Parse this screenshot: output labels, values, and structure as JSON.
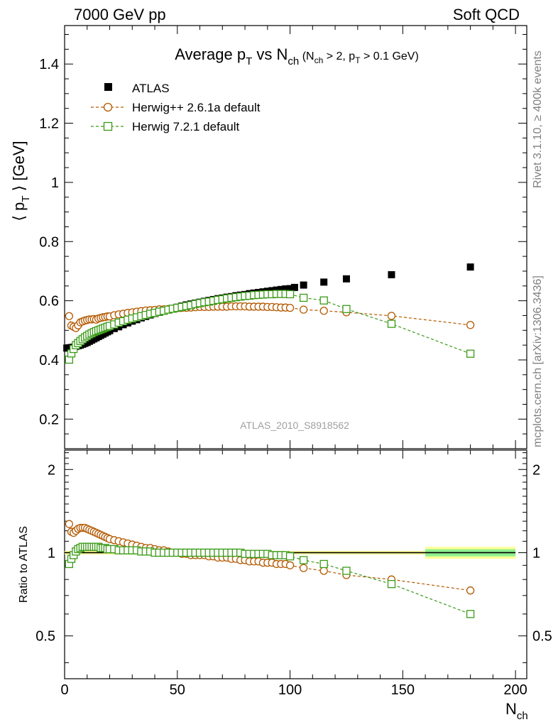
{
  "header": {
    "left": "7000 GeV pp",
    "right": "Soft QCD"
  },
  "side_labels": {
    "top": "Rivet 3.1.10, ≥ 400k events",
    "bottom": "mcplots.cern.ch [arXiv:1306.3436]"
  },
  "watermark": "ATLAS_2010_S8918562",
  "title": {
    "main_a": "Average p",
    "main_sub_a": "T",
    "main_b": " vs N",
    "main_sub_b": "ch",
    "cut_a": " (N",
    "cut_sub_a": "ch",
    "cut_b": " > 2, p",
    "cut_sub_b": "T",
    "cut_c": " > 0.1 GeV)"
  },
  "ylabel": {
    "open": "⟨ p",
    "sub": "T",
    "close": " ⟩  [GeV]"
  },
  "ratio_ylabel": "Ratio to ATLAS",
  "xlabel": {
    "main": "N",
    "sub": "ch"
  },
  "legend": [
    {
      "name": "ATLAS",
      "color": "#000000",
      "marker": "filled-square"
    },
    {
      "name": "Herwig++ 2.6.1a default",
      "color": "#b35900",
      "marker": "open-circle"
    },
    {
      "name": "Herwig 7.2.1 default",
      "color": "#3a9a17",
      "marker": "open-square"
    }
  ],
  "chart_data": {
    "type": "scatter",
    "xlim": [
      0,
      205
    ],
    "ylim": [
      0.1,
      1.53
    ],
    "ratio_ylim": [
      0.35,
      2.35
    ],
    "x_ticks": [
      "0",
      "50",
      "100",
      "150",
      "200"
    ],
    "y_ticks": [
      "0.2",
      "0.4",
      "0.6",
      "0.8",
      "1",
      "1.2",
      "1.4"
    ],
    "ratio_ticks": [
      "0.5",
      "1",
      "2"
    ],
    "series": [
      {
        "name": "ATLAS",
        "x": [
          1,
          2,
          3,
          4,
          5,
          6,
          7,
          8,
          9,
          10,
          11,
          12,
          13,
          14,
          15,
          16,
          17,
          18,
          19,
          20,
          22,
          24,
          26,
          28,
          30,
          32,
          34,
          36,
          38,
          40,
          42,
          44,
          46,
          48,
          50,
          52,
          54,
          56,
          58,
          60,
          62,
          64,
          66,
          68,
          70,
          72,
          74,
          76,
          78,
          80,
          82,
          84,
          86,
          88,
          90,
          92,
          94,
          96,
          98,
          100,
          102,
          106,
          115,
          125,
          145,
          180
        ],
        "y": [
          0.44,
          0.441,
          0.442,
          0.443,
          0.446,
          0.448,
          0.45,
          0.453,
          0.456,
          0.459,
          0.463,
          0.467,
          0.471,
          0.475,
          0.479,
          0.483,
          0.487,
          0.491,
          0.495,
          0.499,
          0.506,
          0.512,
          0.519,
          0.525,
          0.531,
          0.536,
          0.542,
          0.547,
          0.552,
          0.557,
          0.561,
          0.566,
          0.57,
          0.574,
          0.578,
          0.582,
          0.586,
          0.589,
          0.592,
          0.595,
          0.598,
          0.601,
          0.604,
          0.607,
          0.609,
          0.612,
          0.614,
          0.617,
          0.619,
          0.621,
          0.624,
          0.626,
          0.628,
          0.63,
          0.632,
          0.634,
          0.636,
          0.638,
          0.64,
          0.641,
          0.645,
          0.653,
          0.663,
          0.674,
          0.688,
          0.714
        ]
      },
      {
        "name": "Herwig++ 2.6.1a default",
        "x": [
          2,
          3,
          4,
          5,
          6,
          7,
          8,
          9,
          10,
          11,
          12,
          13,
          14,
          15,
          16,
          17,
          18,
          19,
          20,
          22,
          24,
          26,
          28,
          30,
          32,
          34,
          36,
          38,
          40,
          42,
          44,
          46,
          48,
          50,
          52,
          54,
          56,
          58,
          60,
          62,
          64,
          66,
          68,
          70,
          72,
          74,
          76,
          78,
          80,
          82,
          84,
          86,
          88,
          90,
          92,
          94,
          96,
          98,
          100,
          106,
          115,
          125,
          145,
          180
        ],
        "y": [
          0.548,
          0.516,
          0.512,
          0.508,
          0.517,
          0.527,
          0.53,
          0.533,
          0.535,
          0.537,
          0.537,
          0.538,
          0.536,
          0.54,
          0.542,
          0.544,
          0.545,
          0.547,
          0.547,
          0.551,
          0.554,
          0.556,
          0.559,
          0.561,
          0.563,
          0.565,
          0.567,
          0.568,
          0.569,
          0.571,
          0.571,
          0.572,
          0.573,
          0.575,
          0.576,
          0.576,
          0.577,
          0.578,
          0.579,
          0.579,
          0.579,
          0.58,
          0.58,
          0.58,
          0.58,
          0.581,
          0.581,
          0.581,
          0.581,
          0.58,
          0.58,
          0.58,
          0.58,
          0.579,
          0.579,
          0.578,
          0.577,
          0.577,
          0.576,
          0.57,
          0.566,
          0.561,
          0.549,
          0.518
        ]
      },
      {
        "name": "Herwig 7.2.1 default",
        "x": [
          2,
          3,
          4,
          5,
          6,
          7,
          8,
          9,
          10,
          11,
          12,
          13,
          14,
          15,
          16,
          17,
          18,
          19,
          20,
          22,
          24,
          26,
          28,
          30,
          32,
          34,
          36,
          38,
          40,
          42,
          44,
          46,
          48,
          50,
          52,
          54,
          56,
          58,
          60,
          62,
          64,
          66,
          68,
          70,
          72,
          74,
          76,
          78,
          80,
          82,
          84,
          86,
          88,
          90,
          92,
          94,
          96,
          98,
          100,
          106,
          115,
          125,
          145,
          180
        ],
        "y": [
          0.401,
          0.422,
          0.437,
          0.45,
          0.457,
          0.464,
          0.47,
          0.476,
          0.481,
          0.486,
          0.49,
          0.494,
          0.497,
          0.5,
          0.503,
          0.506,
          0.509,
          0.512,
          0.515,
          0.52,
          0.526,
          0.531,
          0.536,
          0.54,
          0.544,
          0.548,
          0.552,
          0.556,
          0.559,
          0.563,
          0.566,
          0.57,
          0.573,
          0.576,
          0.579,
          0.582,
          0.585,
          0.589,
          0.592,
          0.595,
          0.597,
          0.6,
          0.603,
          0.605,
          0.608,
          0.61,
          0.612,
          0.614,
          0.616,
          0.617,
          0.619,
          0.62,
          0.621,
          0.622,
          0.622,
          0.623,
          0.623,
          0.623,
          0.622,
          0.61,
          0.601,
          0.572,
          0.522,
          0.421
        ]
      }
    ],
    "ratio_series": [
      {
        "name": "Herwig++ 2.6.1a default",
        "x": [
          2,
          3,
          4,
          5,
          6,
          7,
          8,
          9,
          10,
          11,
          12,
          13,
          14,
          15,
          16,
          17,
          18,
          19,
          20,
          22,
          24,
          26,
          28,
          30,
          32,
          34,
          36,
          38,
          40,
          42,
          44,
          46,
          48,
          50,
          52,
          54,
          56,
          58,
          60,
          62,
          64,
          66,
          68,
          70,
          72,
          74,
          76,
          78,
          80,
          82,
          84,
          86,
          88,
          90,
          92,
          94,
          96,
          98,
          100,
          106,
          115,
          125,
          145,
          180
        ],
        "y": [
          1.27,
          1.19,
          1.18,
          1.2,
          1.22,
          1.23,
          1.23,
          1.23,
          1.22,
          1.21,
          1.2,
          1.19,
          1.18,
          1.17,
          1.16,
          1.15,
          1.14,
          1.13,
          1.12,
          1.11,
          1.1,
          1.09,
          1.08,
          1.07,
          1.06,
          1.05,
          1.04,
          1.04,
          1.03,
          1.02,
          1.02,
          1.01,
          1.0,
          1.0,
          0.99,
          0.99,
          0.98,
          0.98,
          0.98,
          0.98,
          0.97,
          0.97,
          0.96,
          0.96,
          0.96,
          0.95,
          0.95,
          0.94,
          0.94,
          0.93,
          0.93,
          0.93,
          0.92,
          0.92,
          0.92,
          0.91,
          0.91,
          0.91,
          0.9,
          0.88,
          0.86,
          0.83,
          0.8,
          0.73
        ]
      },
      {
        "name": "Herwig 7.2.1 default",
        "x": [
          2,
          3,
          4,
          5,
          6,
          7,
          8,
          9,
          10,
          11,
          12,
          13,
          14,
          15,
          16,
          17,
          18,
          19,
          20,
          22,
          24,
          26,
          28,
          30,
          32,
          34,
          36,
          38,
          40,
          42,
          44,
          46,
          48,
          50,
          52,
          54,
          56,
          58,
          60,
          62,
          64,
          66,
          68,
          70,
          72,
          74,
          76,
          78,
          80,
          82,
          84,
          86,
          88,
          90,
          92,
          94,
          96,
          98,
          100,
          106,
          115,
          125,
          145,
          180
        ],
        "y": [
          0.91,
          0.95,
          0.98,
          1.01,
          1.03,
          1.04,
          1.05,
          1.05,
          1.05,
          1.05,
          1.05,
          1.05,
          1.05,
          1.05,
          1.04,
          1.04,
          1.04,
          1.03,
          1.03,
          1.03,
          1.02,
          1.02,
          1.02,
          1.02,
          1.02,
          1.01,
          1.01,
          1.01,
          1.0,
          1.0,
          1.0,
          1.0,
          1.0,
          1.0,
          1.0,
          1.0,
          1.0,
          1.0,
          1.0,
          1.0,
          1.0,
          1.0,
          1.0,
          1.0,
          1.0,
          1.0,
          1.0,
          1.0,
          0.99,
          0.99,
          0.99,
          0.99,
          0.99,
          0.99,
          0.98,
          0.98,
          0.98,
          0.98,
          0.97,
          0.94,
          0.91,
          0.86,
          0.77,
          0.6
        ]
      }
    ],
    "ratio_band": {
      "x_start": 160,
      "x_end": 200,
      "outer": [
        0.95,
        1.05
      ],
      "inner": [
        0.97,
        1.03
      ],
      "outer_color": "#ffff99",
      "inner_color": "#90f090"
    },
    "ratio_band_low": {
      "x_start": 0,
      "x_end": 160,
      "outer": [
        0.985,
        1.015
      ],
      "outer_color": "#ffff99"
    }
  }
}
